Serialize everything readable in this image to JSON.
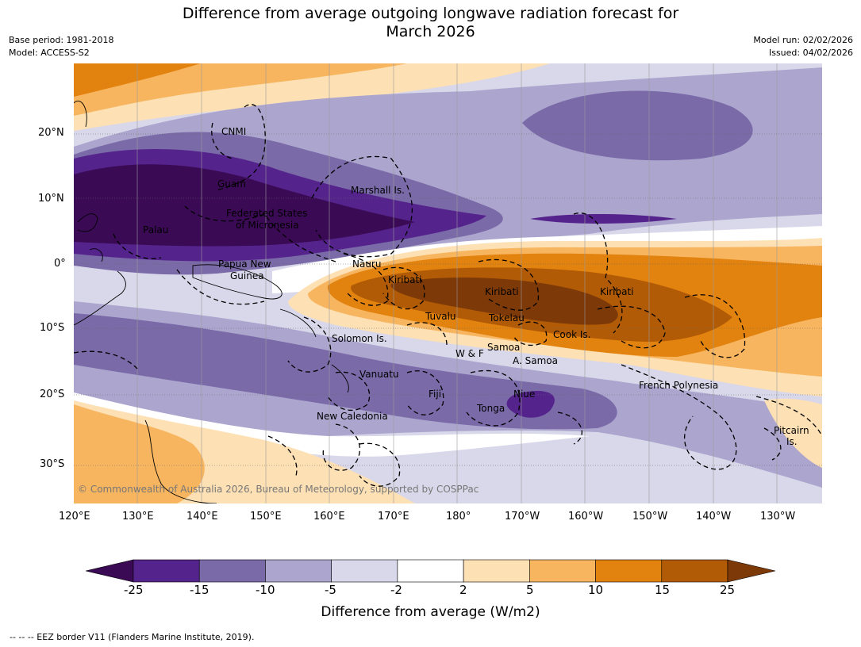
{
  "header": {
    "title_line1": "Difference from average outgoing longwave radiation forecast for",
    "title_line2": "March 2026",
    "base_period": "Base period: 1981-2018",
    "model": "Model: ACCESS-S2",
    "model_run": "Model run: 02/02/2026",
    "issued": "Issued: 04/02/2026"
  },
  "map": {
    "lat_labels": [
      "20°N",
      "10°N",
      "0°",
      "10°S",
      "20°S",
      "30°S"
    ],
    "lon_labels": [
      "120°E",
      "130°E",
      "140°E",
      "150°E",
      "160°E",
      "170°E",
      "180°",
      "170°W",
      "160°W",
      "150°W",
      "140°W",
      "130°W"
    ],
    "regions": {
      "cnmi": "CNMI",
      "guam": "Guam",
      "marshall": "Marshall Is.",
      "fsm_1": "Federated States",
      "fsm_2": "of Micronesia",
      "palau": "Palau",
      "png_1": "Papua New",
      "png_2": "Guinea",
      "nauru": "Nauru",
      "kiribati_w": "Kiribati",
      "kiribati_c": "Kiribati",
      "kiribati_e": "Kiribati",
      "tuvalu": "Tuvalu",
      "tokelau": "Tokelau",
      "cook": "Cook Is.",
      "solomon": "Solomon Is.",
      "wf": "W & F",
      "samoa": "Samoa",
      "asamoa": "A. Samoa",
      "vanuatu": "Vanuatu",
      "fiji": "Fiji",
      "niue": "Niue",
      "tonga": "Tonga",
      "newcal": "New Caledonia",
      "frpoly": "French Polynesia",
      "pitcairn_1": "Pitcairn",
      "pitcairn_2": "Is."
    },
    "copyright": "© Commonwealth of Australia 2026, Bureau of Meteorology, supported by COSPPac"
  },
  "colorbar": {
    "tick_labels": [
      "-25",
      "-15",
      "-10",
      "-5",
      "-2",
      "2",
      "5",
      "10",
      "15",
      "25"
    ],
    "colors": [
      "#3b0a55",
      "#55238c",
      "#7a6aa8",
      "#aca6cf",
      "#d9d8ea",
      "#ffffff",
      "#fde0b4",
      "#f8b55f",
      "#e2820f",
      "#b15b06",
      "#7d3a08"
    ],
    "label": "Difference from average (W/m2)"
  },
  "footer": "--  --  -- EEZ border V11 (Flanders Marine Institute, 2019)."
}
